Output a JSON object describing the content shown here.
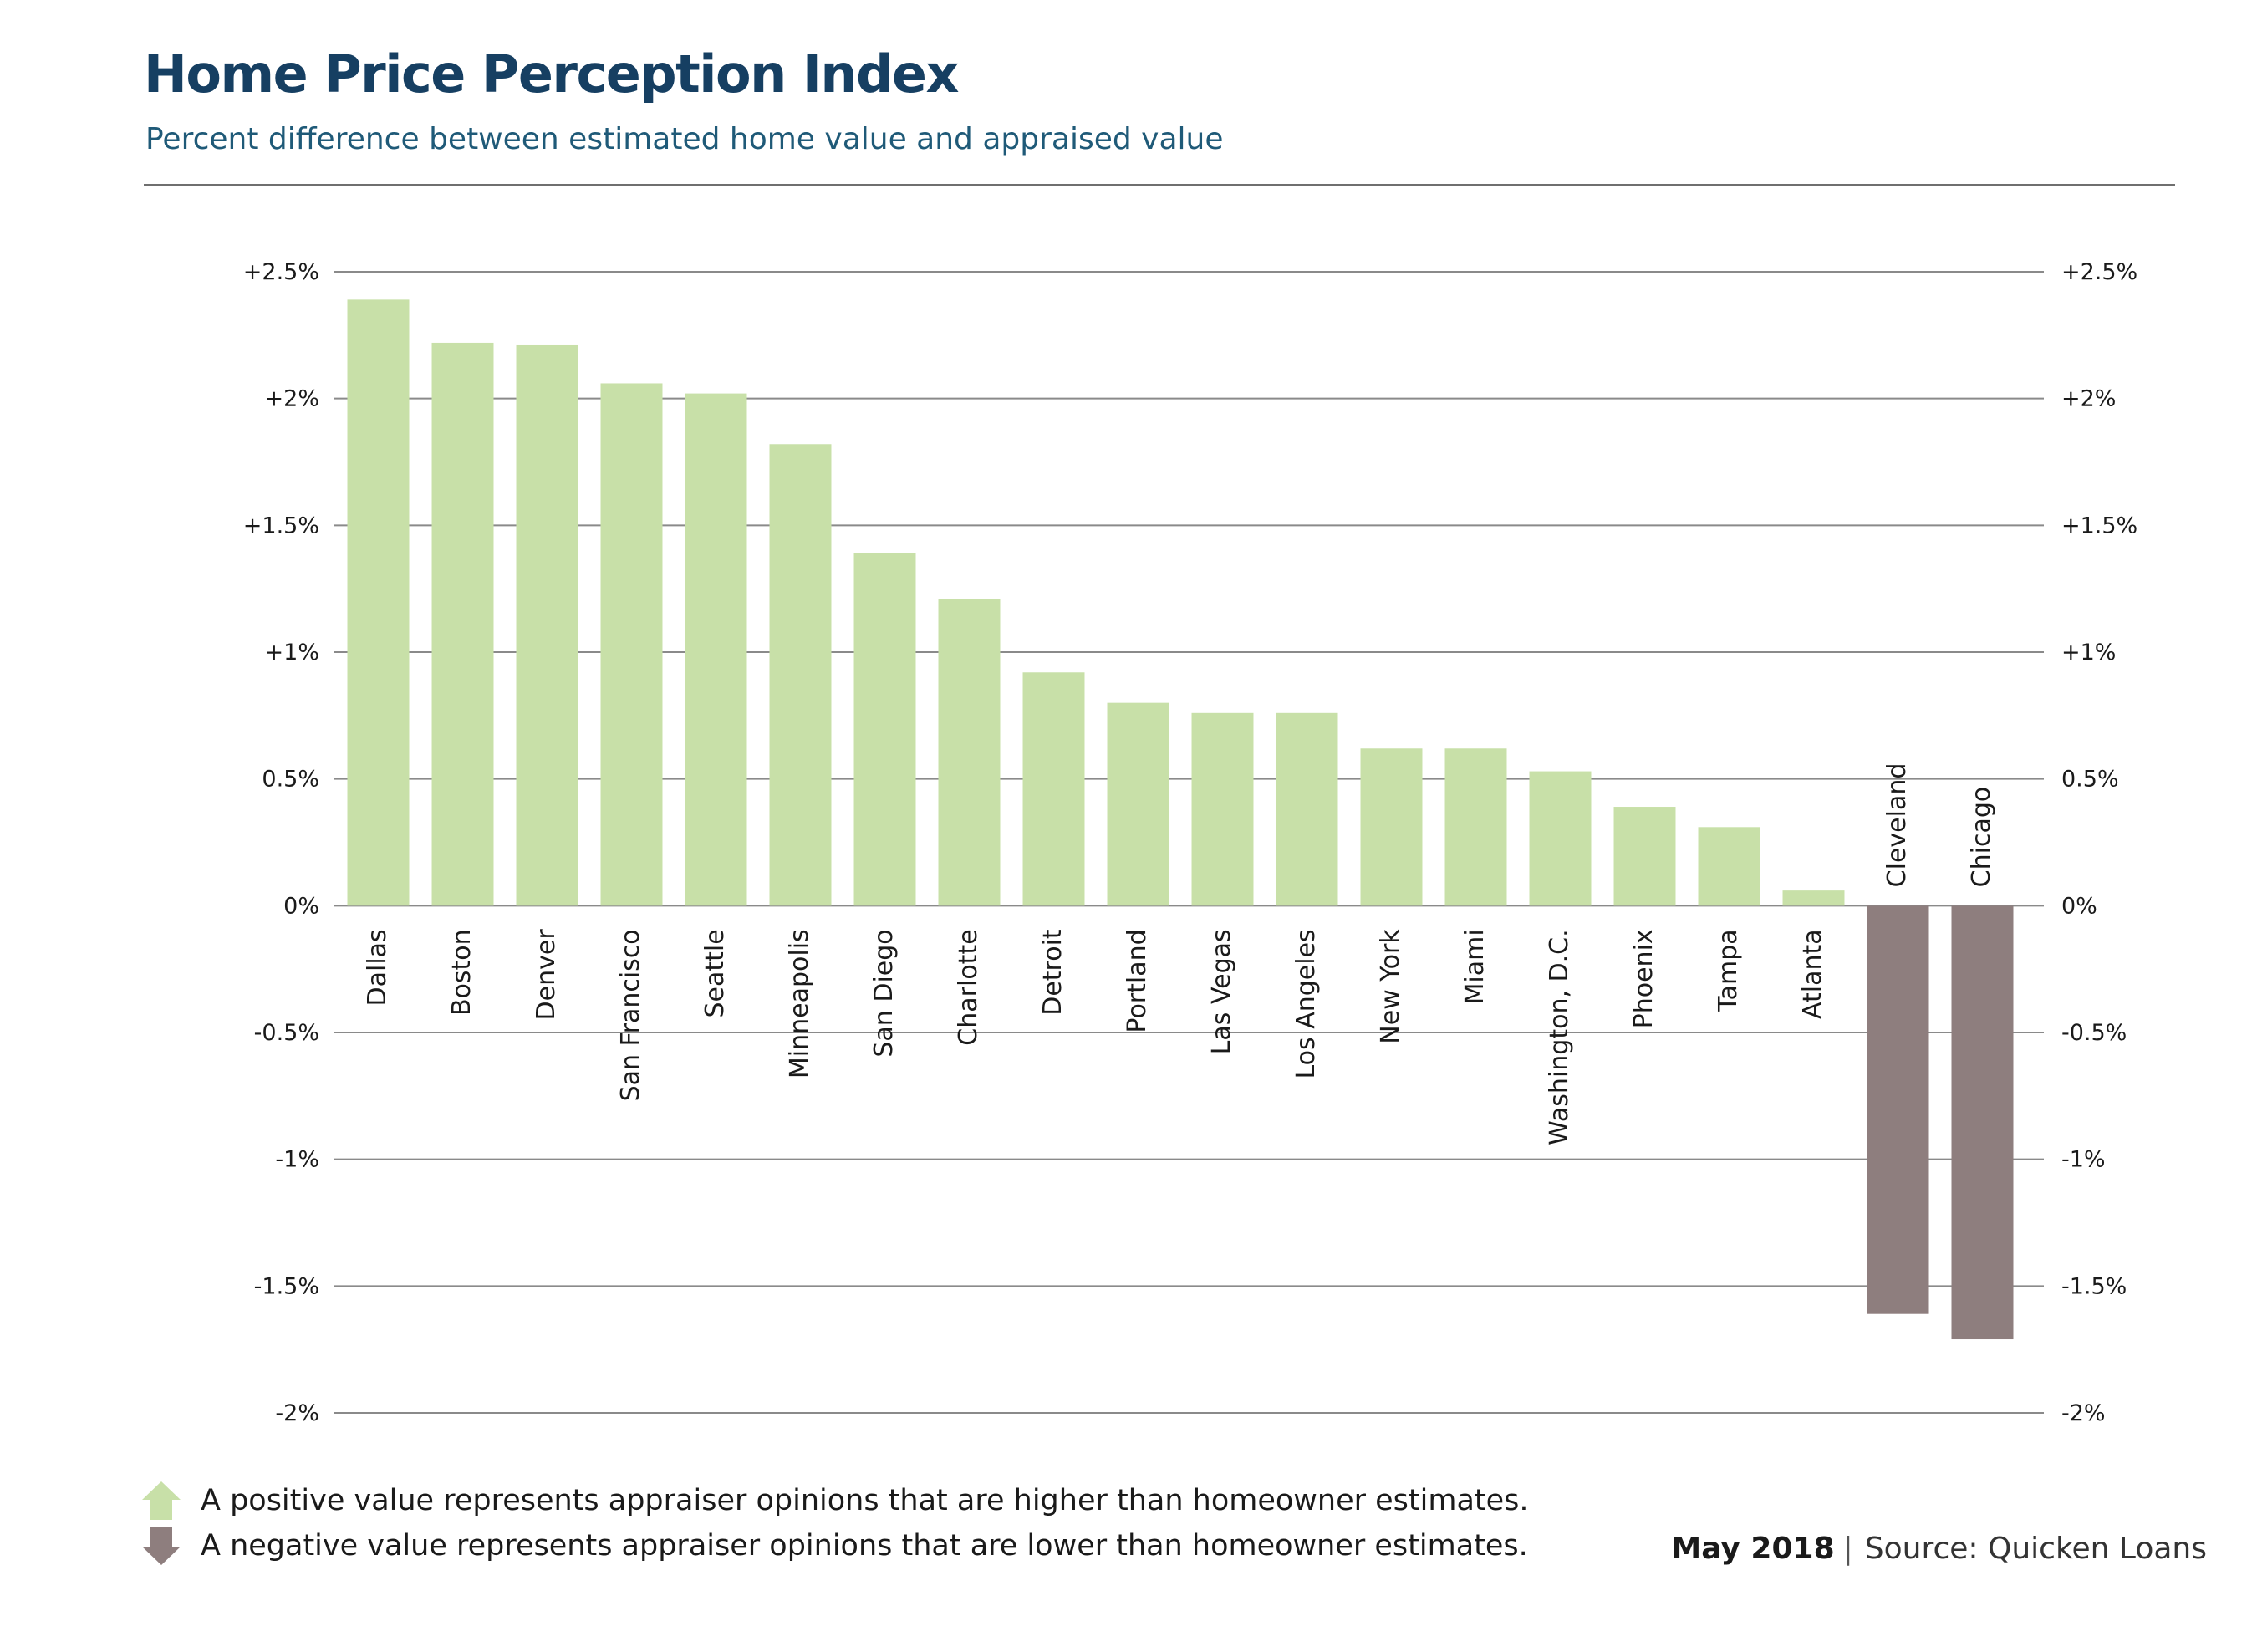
{
  "header": {
    "title": "Home Price Perception Index",
    "subtitle": "Percent difference between estimated home value and appraised value"
  },
  "colors": {
    "positive": "#c8e0a8",
    "negative": "#8e7e7e",
    "title": "#163f62",
    "gridline": "#8a8a8a"
  },
  "chart_data": {
    "type": "bar",
    "title": "Home Price Perception Index",
    "subtitle": "Percent difference between estimated home value and appraised value",
    "categories": [
      "Dallas",
      "Boston",
      "Denver",
      "San Francisco",
      "Seattle",
      "Minneapolis",
      "San Diego",
      "Charlotte",
      "Detroit",
      "Portland",
      "Las Vegas",
      "Los Angeles",
      "New York",
      "Miami",
      "Washington, D.C.",
      "Phoenix",
      "Tampa",
      "Atlanta",
      "Cleveland",
      "Chicago"
    ],
    "values": [
      2.39,
      2.22,
      2.21,
      2.06,
      2.02,
      1.82,
      1.39,
      1.21,
      0.92,
      0.8,
      0.76,
      0.76,
      0.62,
      0.62,
      0.53,
      0.39,
      0.31,
      0.06,
      -1.61,
      -1.71
    ],
    "ylim": [
      -2,
      2.5
    ],
    "y_ticks": [
      2.5,
      2,
      1.5,
      1,
      0.5,
      0,
      -0.5,
      -1,
      -1.5,
      -2
    ],
    "y_tick_labels": [
      "+2.5%",
      "+2%",
      "+1.5%",
      "+1%",
      "0.5%",
      "0%",
      "-0.5%",
      "-1%",
      "-1.5%",
      "-2%"
    ],
    "xlabel": "",
    "ylabel": "",
    "grid": true,
    "legend": "bottom-left"
  },
  "legend": {
    "positive_text": "A positive value represents appraiser opinions that are higher than homeowner estimates.",
    "negative_text": "A negative value represents appraiser opinions that are lower than homeowner estimates.",
    "positive_icon": "arrow-up-icon",
    "negative_icon": "arrow-down-icon"
  },
  "footer": {
    "date": "May 2018",
    "separator": "|",
    "source": "Source: Quicken Loans"
  }
}
